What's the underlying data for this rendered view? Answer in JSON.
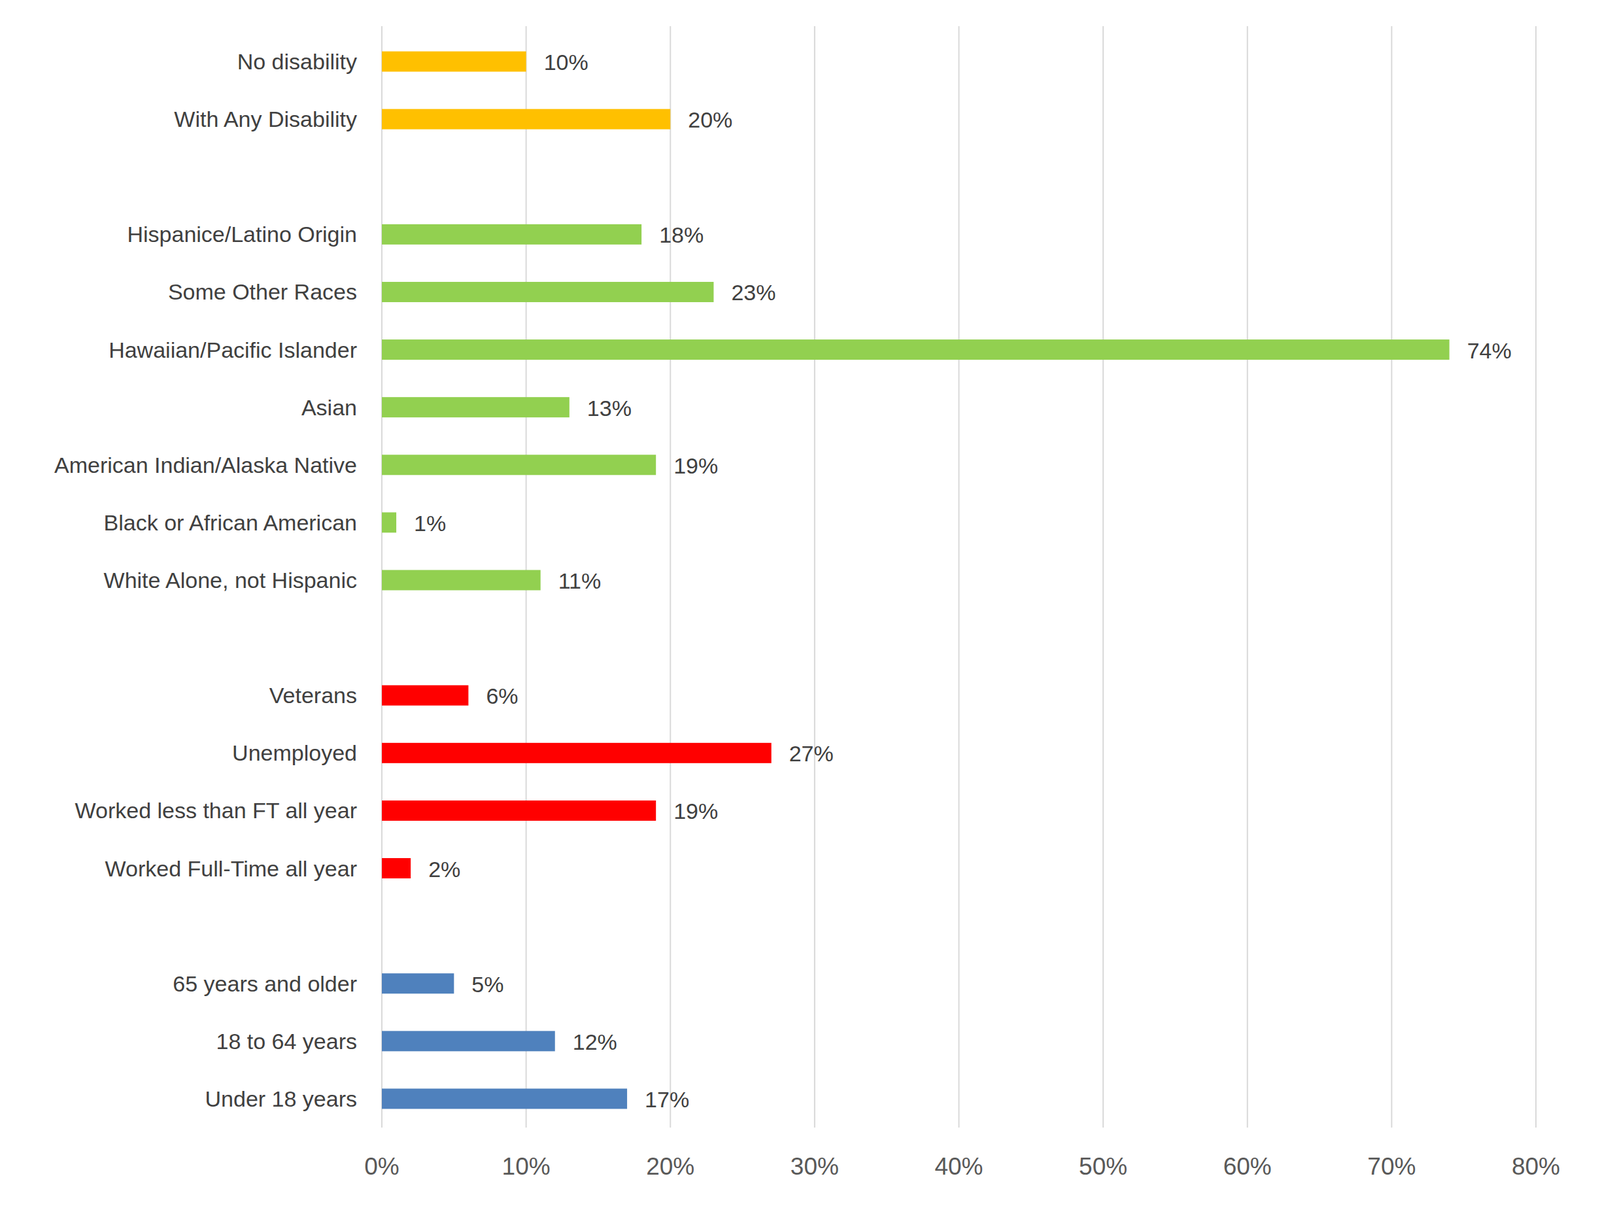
{
  "chart_data": {
    "type": "bar",
    "orientation": "horizontal",
    "categories": [
      "No disability",
      "With Any Disability",
      null,
      "Hispanice/Latino Origin",
      "Some Other Races",
      "Hawaiian/Pacific Islander",
      "Asian",
      "American Indian/Alaska Native",
      "Black or African American",
      "White Alone, not Hispanic",
      null,
      "Veterans",
      "Unemployed",
      "Worked less than FT all year",
      "Worked Full-Time all year",
      null,
      "65 years and older",
      "18 to 64 years",
      "Under 18 years"
    ],
    "values": [
      10,
      20,
      null,
      18,
      23,
      74,
      13,
      19,
      1,
      11,
      null,
      6,
      27,
      19,
      2,
      null,
      5,
      12,
      17
    ],
    "value_labels": [
      "10%",
      "20%",
      null,
      "18%",
      "23%",
      "74%",
      "13%",
      "19%",
      "1%",
      "11%",
      null,
      "6%",
      "27%",
      "19%",
      "2%",
      null,
      "5%",
      "12%",
      "17%"
    ],
    "colors": [
      "#ffc000",
      "#ffc000",
      null,
      "#92d050",
      "#92d050",
      "#92d050",
      "#92d050",
      "#92d050",
      "#92d050",
      "#92d050",
      null,
      "#ff0000",
      "#ff0000",
      "#ff0000",
      "#ff0000",
      null,
      "#4f81bd",
      "#4f81bd",
      "#4f81bd"
    ],
    "xlim": [
      0,
      80
    ],
    "xticks": [
      {
        "value": 0,
        "label": "0%"
      },
      {
        "value": 10,
        "label": "10%"
      },
      {
        "value": 20,
        "label": "20%"
      },
      {
        "value": 30,
        "label": "30%"
      },
      {
        "value": 40,
        "label": "40%"
      },
      {
        "value": 50,
        "label": "50%"
      },
      {
        "value": 60,
        "label": "60%"
      },
      {
        "value": 70,
        "label": "70%"
      },
      {
        "value": 80,
        "label": "80%"
      }
    ],
    "grid": true,
    "data_labels": true
  }
}
